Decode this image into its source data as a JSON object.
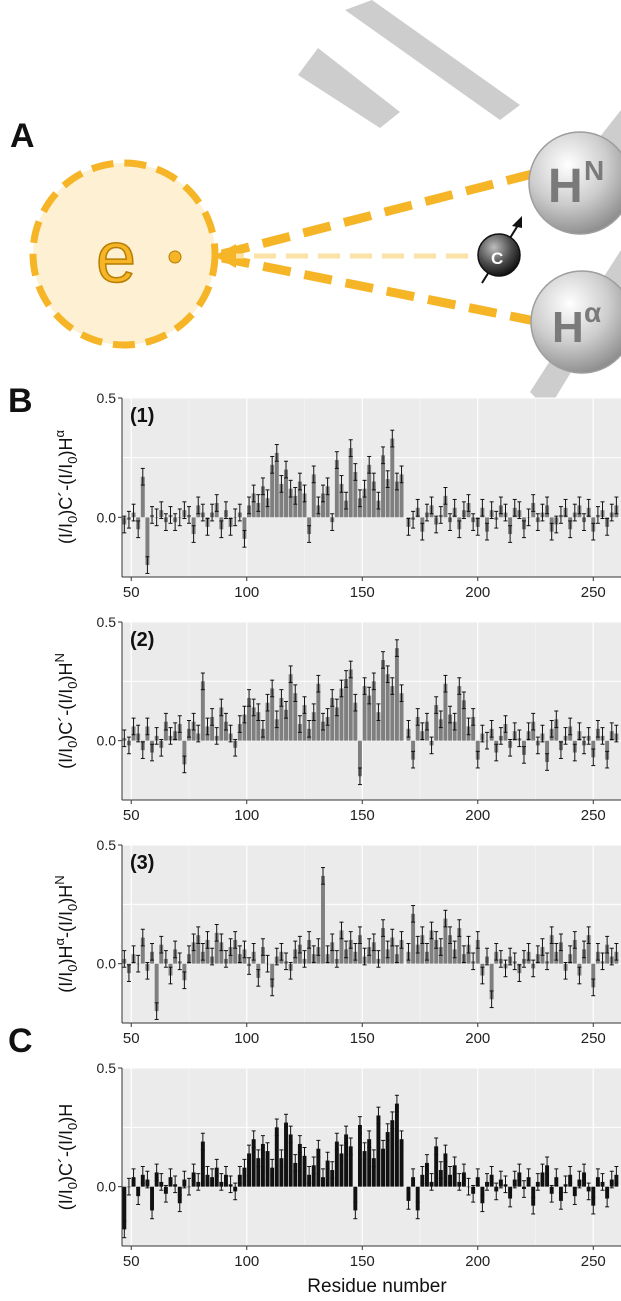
{
  "figure": {
    "panel_a": {
      "letter": "A",
      "electron": "e",
      "hn_main": "H",
      "hn_sup": "N",
      "ha_main": "H",
      "ha_sup": "α",
      "carbonyl": "C"
    },
    "panel_b_letter": "B",
    "panel_c_letter": "C",
    "x_axis_title": "Residue number",
    "colors": {
      "panel_bg": "#ebebeb",
      "bar_gray": "#7f7f7f",
      "bar_black": "#111111",
      "orange": "#f5b526",
      "orange_fill": "#fdf0d3",
      "light_orange": "#fbe2a6",
      "sphere_gray": "#c9c9c9"
    }
  },
  "chart_data": [
    {
      "type": "bar",
      "panel": "B(1)",
      "tag": "(1)",
      "ylabel": {
        "prefix": "(I/I",
        "sub1": "0",
        "mid": ")C´-(I/I",
        "sub2": "0",
        "end": ")H",
        "sup": "α"
      },
      "xlim": [
        46,
        262
      ],
      "ylim": [
        -0.25,
        0.5
      ],
      "x_ticks": [
        50,
        100,
        150,
        200,
        250
      ],
      "y_ticks": [
        0.0,
        0.5
      ],
      "y_tick_labels": [
        "0.0",
        "0.5"
      ],
      "color": "gray",
      "x": [
        47,
        49,
        51,
        53,
        55,
        57,
        59,
        61,
        63,
        65,
        67,
        69,
        71,
        73,
        75,
        77,
        79,
        81,
        83,
        85,
        87,
        89,
        91,
        93,
        95,
        97,
        99,
        101,
        103,
        105,
        107,
        109,
        111,
        113,
        115,
        117,
        119,
        121,
        123,
        125,
        127,
        129,
        131,
        133,
        135,
        137,
        139,
        141,
        143,
        145,
        147,
        149,
        151,
        153,
        155,
        157,
        159,
        161,
        163,
        165,
        167,
        170,
        172,
        174,
        176,
        178,
        180,
        182,
        184,
        186,
        188,
        190,
        192,
        194,
        196,
        198,
        200,
        202,
        204,
        206,
        208,
        210,
        212,
        214,
        216,
        218,
        220,
        222,
        224,
        226,
        228,
        230,
        232,
        234,
        236,
        238,
        240,
        242,
        244,
        246,
        248,
        250,
        252,
        254,
        256,
        258,
        260
      ],
      "values": [
        -0.03,
        -0.01,
        0.02,
        -0.05,
        0.17,
        -0.2,
        0.01,
        0.0,
        0.03,
        -0.02,
        0.01,
        -0.02,
        0.0,
        0.03,
        0.01,
        -0.07,
        0.05,
        0.02,
        -0.04,
        0.02,
        0.06,
        -0.05,
        0.03,
        -0.04,
        0.0,
        0.02,
        -0.09,
        0.05,
        0.1,
        0.06,
        0.13,
        0.08,
        0.22,
        0.27,
        0.14,
        0.2,
        0.12,
        0.09,
        0.15,
        0.1,
        -0.07,
        0.18,
        0.05,
        0.1,
        0.13,
        -0.02,
        0.24,
        0.14,
        0.07,
        0.29,
        0.19,
        0.08,
        0.12,
        0.22,
        0.15,
        0.07,
        0.26,
        0.16,
        0.33,
        0.15,
        0.18,
        -0.04,
        -0.01,
        0.04,
        -0.06,
        0.02,
        0.05,
        -0.03,
        0.01,
        0.09,
        -0.02,
        0.04,
        -0.05,
        0.03,
        0.06,
        -0.02,
        -0.04,
        0.04,
        -0.06,
        0.03,
        -0.01,
        0.05,
        0.02,
        -0.07,
        0.04,
        0.03,
        -0.05,
        0.0,
        0.06,
        -0.02,
        0.02,
        0.05,
        -0.06,
        -0.03,
        0.01,
        0.04,
        -0.05,
        0.02,
        0.05,
        -0.02,
        0.04,
        -0.06,
        0.01,
        0.03,
        -0.04,
        0.02,
        0.05
      ]
    },
    {
      "type": "bar",
      "panel": "B(2)",
      "tag": "(2)",
      "ylabel": {
        "prefix": "(I/I",
        "sub1": "0",
        "mid": ")C´-(I/I",
        "sub2": "0",
        "end": ")H",
        "sup": "N"
      },
      "xlim": [
        46,
        262
      ],
      "ylim": [
        -0.25,
        0.5
      ],
      "x_ticks": [
        50,
        100,
        150,
        200,
        250
      ],
      "y_ticks": [
        0.0,
        0.5
      ],
      "y_tick_labels": [
        "0.0",
        "0.5"
      ],
      "color": "gray",
      "x": [
        47,
        49,
        51,
        53,
        55,
        57,
        59,
        61,
        63,
        65,
        67,
        69,
        71,
        73,
        75,
        77,
        79,
        81,
        83,
        85,
        87,
        89,
        91,
        93,
        95,
        97,
        99,
        101,
        103,
        105,
        107,
        109,
        111,
        113,
        115,
        117,
        119,
        121,
        123,
        125,
        127,
        129,
        131,
        133,
        135,
        137,
        139,
        141,
        143,
        145,
        147,
        149,
        151,
        153,
        155,
        157,
        159,
        161,
        163,
        165,
        167,
        170,
        172,
        174,
        176,
        178,
        180,
        182,
        184,
        186,
        188,
        190,
        192,
        194,
        196,
        198,
        200,
        202,
        204,
        206,
        208,
        210,
        212,
        214,
        216,
        218,
        220,
        222,
        224,
        226,
        228,
        230,
        232,
        234,
        236,
        238,
        240,
        242,
        244,
        246,
        248,
        250,
        252,
        254,
        256,
        258,
        260
      ],
      "values": [
        0.01,
        -0.02,
        0.06,
        0.03,
        -0.04,
        0.06,
        -0.05,
        0.02,
        -0.03,
        0.08,
        0.02,
        0.04,
        0.07,
        -0.1,
        0.05,
        0.08,
        0.03,
        0.25,
        0.06,
        0.1,
        0.02,
        0.14,
        0.08,
        0.03,
        -0.03,
        0.07,
        0.11,
        0.18,
        0.14,
        0.12,
        0.05,
        0.16,
        0.22,
        0.09,
        0.18,
        0.13,
        0.28,
        0.2,
        0.07,
        0.15,
        0.05,
        0.12,
        0.24,
        0.08,
        0.1,
        0.18,
        0.14,
        0.22,
        0.26,
        0.3,
        0.16,
        -0.15,
        0.23,
        0.19,
        0.25,
        0.12,
        0.34,
        0.28,
        0.23,
        0.39,
        0.2,
        0.05,
        -0.08,
        0.1,
        0.04,
        0.08,
        -0.02,
        0.15,
        0.09,
        0.24,
        0.11,
        0.08,
        0.23,
        0.17,
        0.06,
        0.1,
        -0.08,
        0.03,
        0.0,
        0.05,
        -0.05,
        0.02,
        0.07,
        -0.03,
        0.04,
        0.01,
        -0.06,
        0.04,
        0.08,
        -0.02,
        0.03,
        -0.09,
        0.05,
        0.09,
        -0.04,
        0.02,
        0.06,
        -0.05,
        0.04,
        -0.02,
        0.02,
        -0.07,
        0.05,
        0.02,
        -0.08,
        0.04,
        0.03
      ]
    },
    {
      "type": "bar",
      "panel": "B(3)",
      "tag": "(3)",
      "ylabel": {
        "prefix": "(I/I",
        "sub1": "0",
        "mid": ")H",
        "sup1": "α",
        "mid2": "-(I/I",
        "sub2": "0",
        "end": ")H",
        "sup": "N"
      },
      "xlim": [
        46,
        262
      ],
      "ylim": [
        -0.25,
        0.5
      ],
      "x_ticks": [
        50,
        100,
        150,
        200,
        250
      ],
      "y_ticks": [
        0.0,
        0.5
      ],
      "y_tick_labels": [
        "0.0",
        "0.5"
      ],
      "color": "gray",
      "x": [
        47,
        49,
        51,
        53,
        55,
        57,
        59,
        61,
        63,
        65,
        67,
        69,
        71,
        73,
        75,
        77,
        79,
        81,
        83,
        85,
        87,
        89,
        91,
        93,
        95,
        97,
        99,
        101,
        103,
        105,
        107,
        109,
        111,
        113,
        115,
        117,
        119,
        121,
        123,
        125,
        127,
        129,
        131,
        133,
        135,
        137,
        139,
        141,
        143,
        145,
        147,
        149,
        151,
        153,
        155,
        157,
        159,
        161,
        163,
        165,
        167,
        170,
        172,
        174,
        176,
        178,
        180,
        182,
        184,
        186,
        188,
        190,
        192,
        194,
        196,
        198,
        200,
        202,
        204,
        206,
        208,
        210,
        212,
        214,
        216,
        218,
        220,
        222,
        224,
        226,
        228,
        230,
        232,
        234,
        236,
        238,
        240,
        242,
        244,
        246,
        248,
        250,
        252,
        254,
        256,
        258,
        260
      ],
      "values": [
        0.02,
        -0.04,
        0.04,
        0.0,
        0.11,
        -0.03,
        0.05,
        -0.2,
        0.08,
        0.02,
        -0.05,
        0.06,
        0.01,
        -0.07,
        0.04,
        0.09,
        0.12,
        0.05,
        0.1,
        0.03,
        0.13,
        0.09,
        0.02,
        0.07,
        0.1,
        0.04,
        0.06,
        -0.01,
        0.05,
        -0.06,
        0.07,
        0.0,
        -0.1,
        0.03,
        0.05,
        0.01,
        -0.03,
        0.06,
        0.08,
        0.02,
        0.1,
        0.04,
        0.07,
        0.37,
        0.04,
        0.09,
        0.02,
        0.14,
        0.06,
        0.1,
        0.05,
        0.12,
        0.03,
        0.07,
        0.09,
        0.02,
        0.15,
        0.06,
        0.11,
        0.04,
        0.1,
        0.05,
        0.21,
        0.08,
        0.12,
        0.05,
        0.14,
        0.1,
        0.07,
        0.19,
        0.12,
        0.06,
        0.15,
        0.04,
        0.08,
        0.01,
        0.1,
        -0.05,
        0.03,
        -0.15,
        0.05,
        0.02,
        -0.02,
        0.03,
        0.01,
        -0.04,
        0.02,
        0.05,
        -0.02,
        0.04,
        0.07,
        0.01,
        0.12,
        0.05,
        0.09,
        -0.03,
        0.04,
        0.1,
        -0.05,
        0.06,
        0.12,
        -0.1,
        0.05,
        0.01,
        0.08,
        0.03,
        0.05
      ]
    },
    {
      "type": "bar",
      "panel": "C",
      "tag": "",
      "ylabel": {
        "prefix": "(I/I",
        "sub1": "0",
        "mid": ")C´-(I/I",
        "sub2": "0",
        "end": ")H",
        "sup": ""
      },
      "xlabel": "Residue number",
      "xlim": [
        46,
        262
      ],
      "ylim": [
        -0.25,
        0.5
      ],
      "x_ticks": [
        50,
        100,
        150,
        200,
        250
      ],
      "y_ticks": [
        0.0,
        0.5
      ],
      "y_tick_labels": [
        "0.0",
        "0.5"
      ],
      "color": "black",
      "x": [
        47,
        49,
        51,
        53,
        55,
        57,
        59,
        61,
        63,
        65,
        67,
        69,
        71,
        73,
        75,
        77,
        79,
        81,
        83,
        85,
        87,
        89,
        91,
        93,
        95,
        97,
        99,
        101,
        103,
        105,
        107,
        109,
        111,
        113,
        115,
        117,
        119,
        121,
        123,
        125,
        127,
        129,
        131,
        133,
        135,
        137,
        139,
        141,
        143,
        145,
        147,
        149,
        151,
        153,
        155,
        157,
        159,
        161,
        163,
        165,
        167,
        170,
        172,
        174,
        176,
        178,
        180,
        182,
        184,
        186,
        188,
        190,
        192,
        194,
        196,
        198,
        200,
        202,
        204,
        206,
        208,
        210,
        212,
        214,
        216,
        218,
        220,
        222,
        224,
        226,
        228,
        230,
        232,
        234,
        236,
        238,
        240,
        242,
        244,
        246,
        248,
        250,
        252,
        254,
        256,
        258,
        260
      ],
      "values": [
        -0.18,
        0.0,
        0.04,
        -0.04,
        0.05,
        0.03,
        -0.1,
        0.06,
        0.02,
        -0.03,
        0.04,
        0.01,
        -0.07,
        0.03,
        0.0,
        0.06,
        0.02,
        0.19,
        0.05,
        0.04,
        0.08,
        0.02,
        0.05,
        0.01,
        -0.02,
        0.05,
        0.08,
        0.14,
        0.2,
        0.12,
        0.18,
        0.15,
        0.08,
        0.25,
        0.12,
        0.27,
        0.22,
        0.1,
        0.18,
        0.13,
        0.05,
        0.09,
        0.16,
        0.04,
        0.11,
        0.07,
        0.19,
        0.14,
        0.22,
        0.17,
        -0.1,
        0.26,
        0.15,
        0.2,
        0.12,
        0.3,
        0.16,
        0.23,
        0.28,
        0.35,
        0.2,
        -0.06,
        0.04,
        -0.1,
        0.05,
        0.1,
        0.02,
        0.17,
        0.07,
        0.14,
        0.05,
        0.09,
        0.02,
        0.06,
        0.0,
        -0.03,
        0.04,
        -0.07,
        0.02,
        0.05,
        -0.02,
        0.03,
        0.01,
        -0.05,
        0.03,
        0.06,
        -0.01,
        0.04,
        -0.08,
        0.02,
        0.06,
        0.09,
        -0.03,
        0.04,
        -0.06,
        0.01,
        0.05,
        -0.04,
        0.03,
        0.06,
        -0.02,
        -0.08,
        0.04,
        0.02,
        -0.05,
        0.03,
        0.05
      ]
    }
  ]
}
